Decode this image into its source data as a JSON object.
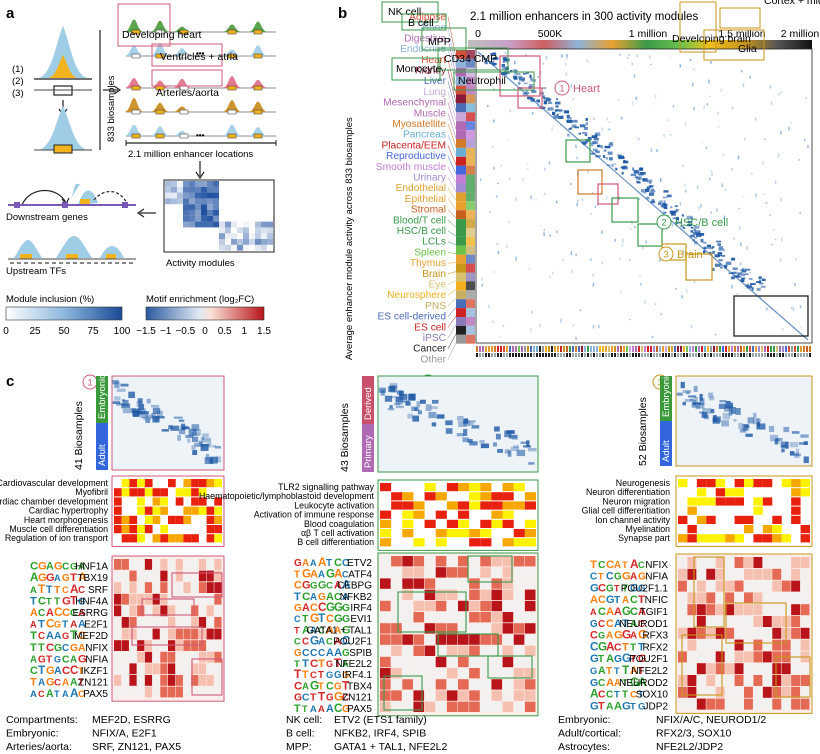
{
  "panel_a": {
    "letter": "a",
    "step_labels": [
      "(1)",
      "(2)",
      "(3)"
    ],
    "biosamples_label": "833 biosamples",
    "enhancer_locations": "2.1 million enhancer locations",
    "downstream": "Downstream genes",
    "upstream": "Upstream TFs",
    "activity_modules": "Activity modules",
    "ellipsis": "•••",
    "legend_module": {
      "title": "Module inclusion (%)",
      "ticks": [
        "0",
        "25",
        "50",
        "75",
        "100"
      ]
    },
    "legend_motif": {
      "title": "Motif enrichment (log₂FC)",
      "ticks": [
        "−1.5",
        "−1",
        "−0.5",
        "0",
        "0.5",
        "1",
        "1.5"
      ]
    }
  },
  "panel_b": {
    "letter": "b",
    "title": "2.1 million enhancers in 300 activity modules",
    "x_ticks": [
      "0",
      "500K",
      "1 million",
      "1.5 million",
      "2 million"
    ],
    "y_label": "Average enhancer module activity across 833 biosamples",
    "tissues": [
      {
        "name": "Adipose",
        "color": "#d4503a"
      },
      {
        "name": "Bone",
        "color": "#8fb3d9"
      },
      {
        "name": "Digestive",
        "color": "#b06ab3"
      },
      {
        "name": "Endocrine",
        "color": "#8fb3d9"
      },
      {
        "name": "Heart",
        "color": "#d4503a"
      },
      {
        "name": "Kidney",
        "color": "#8b1a3a"
      },
      {
        "name": "Liver",
        "color": "#4b6cb7"
      },
      {
        "name": "Lung",
        "color": "#c9a8d8"
      },
      {
        "name": "Mesenchymal",
        "color": "#b06ab3"
      },
      {
        "name": "Muscle",
        "color": "#b06ab3"
      },
      {
        "name": "Myosatellite",
        "color": "#d07a2a"
      },
      {
        "name": "Pancreas",
        "color": "#6aaed6"
      },
      {
        "name": "Placenta/EEM",
        "color": "#cc2222"
      },
      {
        "name": "Reproductive",
        "color": "#4466dd"
      },
      {
        "name": "Smooth muscle",
        "color": "#c37fd6"
      },
      {
        "name": "Urinary",
        "color": "#a38ad0"
      },
      {
        "name": "Endothelial",
        "color": "#e0a030"
      },
      {
        "name": "Epithelial",
        "color": "#e8a030"
      },
      {
        "name": "Stromal",
        "color": "#c86020"
      },
      {
        "name": "Blood/T cell",
        "color": "#3a9a4a"
      },
      {
        "name": "HSC/B cell",
        "color": "#3a9a4a"
      },
      {
        "name": "LCLs",
        "color": "#3a9a4a"
      },
      {
        "name": "Spleen",
        "color": "#6cc24a"
      },
      {
        "name": "Thymus",
        "color": "#e8a030"
      },
      {
        "name": "Brain",
        "color": "#c8961a"
      },
      {
        "name": "Eye",
        "color": "#d8c070"
      },
      {
        "name": "Neurosphere",
        "color": "#f0b020"
      },
      {
        "name": "PNS",
        "color": "#c8b060"
      },
      {
        "name": "ES cell-derived",
        "color": "#4b6cb7"
      },
      {
        "name": "ES cell",
        "color": "#cc2222"
      },
      {
        "name": "iPSC",
        "color": "#8a7ab8"
      },
      {
        "name": "Cancer",
        "color": "#222222"
      },
      {
        "name": "Other",
        "color": "#999999"
      }
    ],
    "annotations": [
      {
        "num": "1",
        "label": "Heart",
        "color": "#d05a7a"
      },
      {
        "num": "2",
        "label": "HSC/B cell",
        "color": "#3a9a4a"
      },
      {
        "num": "3",
        "label": "Brain",
        "color": "#c8961a"
      }
    ]
  },
  "panel_c": {
    "letter": "c",
    "heart": {
      "num": "1",
      "biosamples": "41 Biosamples",
      "groups": [
        "Embryonic",
        "Adult"
      ],
      "boxes": [
        "Developing heart",
        "Ventricles + atria",
        "Arteries/aorta"
      ],
      "go_terms": [
        "Cardiovascular development",
        "Myofibril",
        "Cardiac chamber development",
        "Cardiac hypertrophy",
        "Heart morphogenesis",
        "Muscle cell differentiation",
        "Regulation of ion transport"
      ],
      "motifs": [
        "HNF1A",
        "TBX19",
        "SRF",
        "HNF4A",
        "ESRRG",
        "E2F1",
        "MEF2D",
        "NFIX",
        "NFIA",
        "IKZF1",
        "ZN121",
        "PAX5"
      ],
      "summary": [
        {
          "key": "Compartments:",
          "value": "MEF2D, ESRRG"
        },
        {
          "key": "Embryonic:",
          "value": "NFIX/A, E2F1"
        },
        {
          "key": "Arteries/aorta:",
          "value": "SRF, ZN121, PAX5"
        }
      ]
    },
    "hsc": {
      "num": "2",
      "biosamples": "43 Biosamples",
      "groups": [
        "Derived",
        "Primary"
      ],
      "boxes": [
        "NK cell",
        "B cell",
        "MPP",
        "CD34 CMP",
        "Monocyte",
        "Neutrophil"
      ],
      "go_terms": [
        "TLR2 signalling pathway",
        "Haematopoietic/lymphoblastoid development",
        "Leukocyte activation",
        "Activation of immune response",
        "Blood coagulation",
        "αβ T cell activation",
        "B cell differentiation"
      ],
      "motifs": [
        "ETV2",
        "ATF4",
        "CEBPG",
        "NFKB2",
        "IRF4",
        "EVI1",
        "GATA1 + TAL1",
        "POU2F1",
        "SPIB",
        "NFE2L2",
        "IRF4.1",
        "TBX4",
        "ZN121",
        "PAX5"
      ],
      "summary": [
        {
          "key": "NK cell:",
          "value": "ETV2 (ETS1 family)"
        },
        {
          "key": "B cell:",
          "value": "NFKB2, IRF4, SPIB"
        },
        {
          "key": "MPP:",
          "value": "GATA1 + TAL1, NFE2L2"
        }
      ]
    },
    "brain": {
      "num": "3",
      "biosamples": "52 Biosamples",
      "groups": [
        "Embryonic",
        "Adult"
      ],
      "boxes": [
        "Developing brain",
        "Glia",
        "Cortex + midbrain"
      ],
      "go_terms": [
        "Neurogenesis",
        "Neuron differentiation",
        "Neuron migration",
        "Glial cell differentiation",
        "Ion channel activity",
        "Myelination",
        "Synapse part"
      ],
      "motifs": [
        "NFIX",
        "NFIA",
        "POU2F1.1",
        "NFIC",
        "TGIF1",
        "NEUROD1",
        "RFX3",
        "RFX2",
        "POU2F1",
        "NFE2L2",
        "NEUROD2",
        "SOX10",
        "JDP2"
      ],
      "summary": [
        {
          "key": "Embryonic:",
          "value": "NFIX/A/C, NEUROD1/2"
        },
        {
          "key": "Adult/cortical:",
          "value": "RFX2/3, SOX10"
        },
        {
          "key": "Astrocytes:",
          "value": "NFE2L2/JDP2"
        }
      ]
    }
  }
}
